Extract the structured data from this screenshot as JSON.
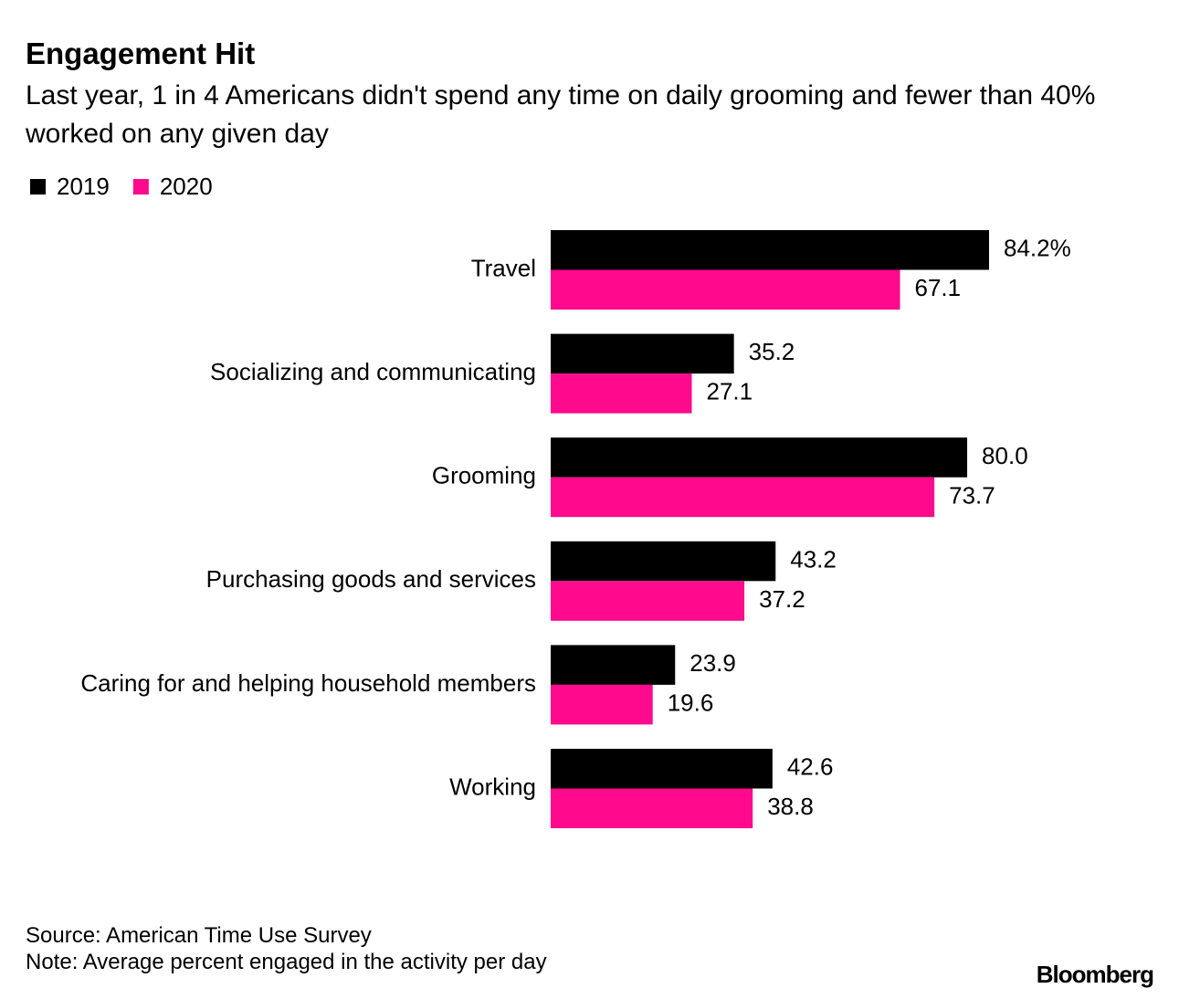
{
  "chart_data": {
    "type": "bar",
    "orientation": "horizontal",
    "title": "Engagement Hit",
    "subtitle": "Last year, 1 in 4 Americans didn't spend any time on daily grooming and fewer than 40% worked on any given day",
    "categories": [
      "Travel",
      "Socializing and communicating",
      "Grooming",
      "Purchasing goods and services",
      "Caring for and helping household members",
      "Working"
    ],
    "series": [
      {
        "name": "2019",
        "color": "#000000",
        "values": [
          84.2,
          35.2,
          80.0,
          43.2,
          23.9,
          42.6
        ],
        "value_labels": [
          "84.2%",
          "35.2",
          "80.0",
          "43.2",
          "23.9",
          "42.6"
        ]
      },
      {
        "name": "2020",
        "color": "#ff0a8c",
        "values": [
          67.1,
          27.1,
          73.7,
          37.2,
          19.6,
          38.8
        ],
        "value_labels": [
          "67.1",
          "27.1",
          "73.7",
          "37.2",
          "19.6",
          "38.8"
        ]
      }
    ],
    "legend": "top-left",
    "source": "Source: American Time Use Survey",
    "note": "Note: Average percent engaged in the activity per day",
    "brand": "Bloomberg"
  }
}
